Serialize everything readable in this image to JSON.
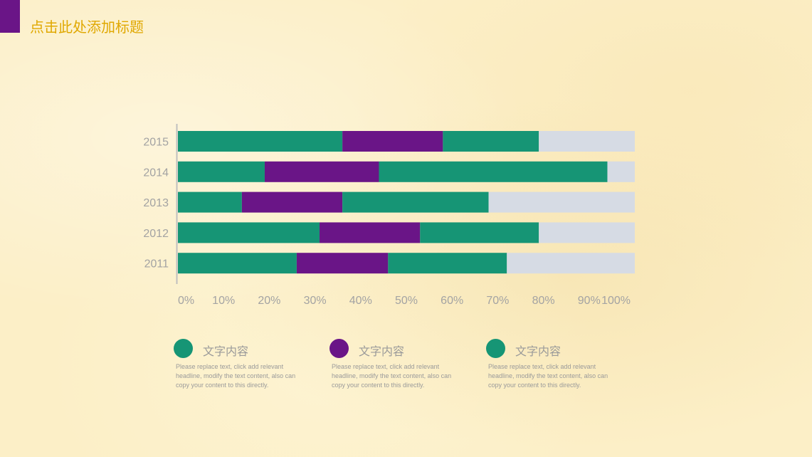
{
  "header": {
    "title": "点击此处添加标题",
    "title_color": "#e0a800",
    "accent_color": "#6a1587"
  },
  "colors": {
    "green": "#169575",
    "purple": "#6a1587",
    "remainder": "#d6dbe4",
    "axis": "#bfbfbf",
    "tick_text": "#a3a3a3"
  },
  "chart_data": {
    "type": "bar",
    "orientation": "horizontal",
    "stacked": true,
    "categories": [
      "2015",
      "2014",
      "2013",
      "2012",
      "2011"
    ],
    "series": [
      {
        "color": "#169575",
        "values": [
          36,
          19,
          14,
          31,
          26
        ]
      },
      {
        "color": "#6a1587",
        "values": [
          22,
          25,
          22,
          22,
          20
        ]
      },
      {
        "color": "#169575",
        "values": [
          21,
          50,
          32,
          26,
          26
        ]
      },
      {
        "color": "#d6dbe4",
        "values": [
          21,
          6,
          32,
          21,
          28
        ]
      }
    ],
    "xlim": [
      0,
      100
    ],
    "x_tick_labels": [
      "0%",
      "10%",
      "20%",
      "30%",
      "40%",
      "50%",
      "60%",
      "70%",
      "80%",
      "90%",
      "100%"
    ],
    "grid": false,
    "legend": "none"
  },
  "legend_blocks": [
    {
      "label": "文字内容",
      "color": "#169575",
      "description": "Please replace text, click add relevant headline, modify the text content, also can copy your content to this directly."
    },
    {
      "label": "文字内容",
      "color": "#6a1587",
      "description": "Please replace text, click add relevant headline, modify the text content, also can copy your content to this directly."
    },
    {
      "label": "文字内容",
      "color": "#169575",
      "description": "Please replace text, click add relevant headline, modify the text content, also can copy your content to this directly."
    }
  ]
}
